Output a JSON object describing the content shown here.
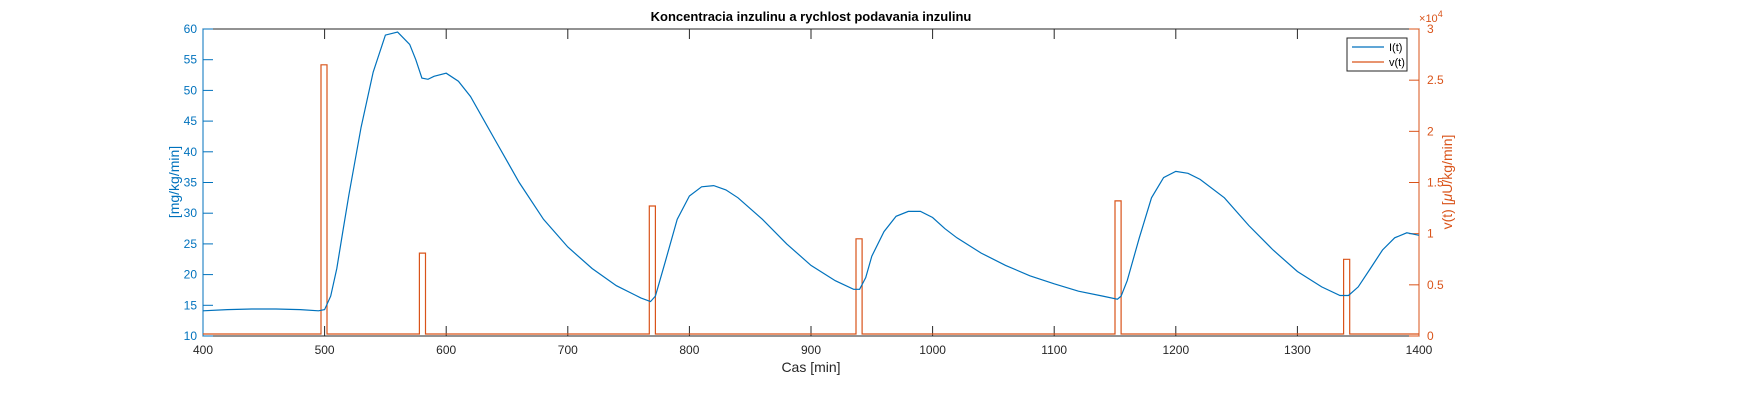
{
  "colors": {
    "left_axis": "#0072BD",
    "right_axis": "#D95319",
    "frame": "#262626",
    "background": "#ffffff"
  },
  "chart_data": {
    "type": "line",
    "title": "Koncentracia inzulinu a rychlost podavania inzulinu",
    "xlabel": "Cas [min]",
    "ylabel_left": "[mg/kg/min]",
    "ylabel_right_prefix": "v(t) [",
    "ylabel_right_mu": "μ",
    "ylabel_right_suffix": "U/kg/min]",
    "right_axis_exponent_times": "×",
    "right_axis_exponent_base": "10",
    "right_axis_exponent_power": "4",
    "xlim": [
      400,
      1400
    ],
    "ylim_left": [
      10,
      60
    ],
    "ylim_right": [
      0,
      3
    ],
    "x_ticks": [
      400,
      500,
      600,
      700,
      800,
      900,
      1000,
      1100,
      1200,
      1300,
      1400
    ],
    "y_left_ticks": [
      10,
      15,
      20,
      25,
      30,
      35,
      40,
      45,
      50,
      55,
      60
    ],
    "y_right_ticks": [
      0,
      0.5,
      1,
      1.5,
      2,
      2.5,
      3
    ],
    "legend_position": "top-right",
    "series": [
      {
        "name": "I(t)",
        "axis": "left",
        "x": [
          400,
          420,
          440,
          460,
          480,
          495,
          500,
          505,
          510,
          515,
          520,
          530,
          540,
          550,
          560,
          570,
          575,
          580,
          585,
          590,
          600,
          610,
          620,
          640,
          660,
          680,
          700,
          720,
          740,
          760,
          768,
          772,
          780,
          790,
          800,
          810,
          820,
          830,
          840,
          860,
          880,
          900,
          920,
          935,
          940,
          945,
          950,
          960,
          970,
          980,
          990,
          1000,
          1010,
          1020,
          1040,
          1060,
          1080,
          1100,
          1120,
          1140,
          1152,
          1155,
          1160,
          1170,
          1180,
          1190,
          1200,
          1210,
          1220,
          1240,
          1260,
          1280,
          1300,
          1320,
          1335,
          1342,
          1350,
          1360,
          1370,
          1380,
          1390,
          1400
        ],
        "values": [
          14.1,
          14.3,
          14.4,
          14.4,
          14.3,
          14.1,
          14.3,
          16.5,
          21.0,
          27.0,
          33.0,
          44.0,
          53.0,
          59.0,
          59.5,
          57.5,
          55.0,
          52.0,
          51.8,
          52.3,
          52.8,
          51.5,
          49.0,
          42.0,
          35.0,
          29.0,
          24.5,
          21.0,
          18.2,
          16.2,
          15.6,
          16.5,
          22.0,
          29.0,
          32.8,
          34.3,
          34.5,
          33.8,
          32.5,
          29.0,
          25.0,
          21.5,
          19.0,
          17.6,
          17.6,
          19.5,
          23.0,
          27.0,
          29.5,
          30.3,
          30.3,
          29.3,
          27.5,
          26.0,
          23.5,
          21.5,
          19.8,
          18.5,
          17.3,
          16.5,
          16.0,
          16.5,
          19.0,
          26.0,
          32.5,
          35.8,
          36.8,
          36.5,
          35.5,
          32.5,
          28.0,
          24.0,
          20.5,
          18.0,
          16.6,
          16.6,
          18.0,
          21.0,
          24.0,
          26.0,
          26.8,
          26.4
        ]
      },
      {
        "name": "v(t)",
        "axis": "right",
        "baseline": 0.02,
        "pulses": [
          {
            "x_start": 497,
            "x_end": 502,
            "value": 2.65
          },
          {
            "x_start": 578,
            "x_end": 583,
            "value": 0.81
          },
          {
            "x_start": 767,
            "x_end": 772,
            "value": 1.27
          },
          {
            "x_start": 937,
            "x_end": 942,
            "value": 0.95
          },
          {
            "x_start": 1150,
            "x_end": 1155,
            "value": 1.32
          },
          {
            "x_start": 1338,
            "x_end": 1343,
            "value": 0.75
          }
        ]
      }
    ]
  }
}
